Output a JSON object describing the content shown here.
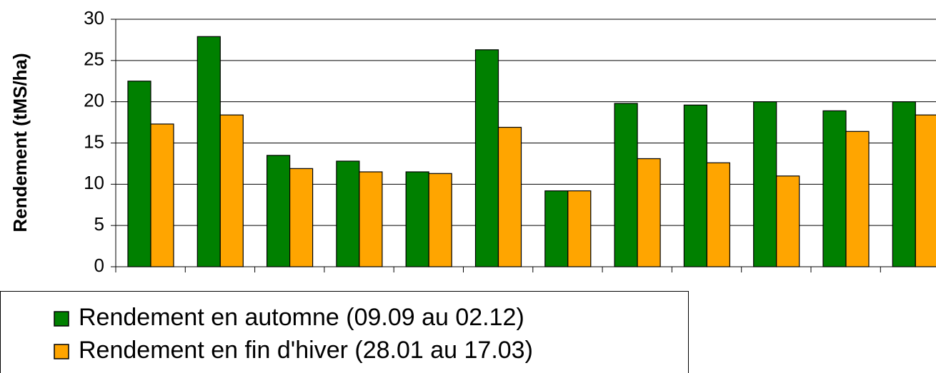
{
  "chart_data": {
    "type": "bar",
    "y_label": "Rendement (tMS/ha)",
    "categories": [
      null,
      null,
      null,
      null,
      null,
      null,
      null,
      null,
      null,
      null,
      null,
      null
    ],
    "series": [
      {
        "name": "Rendement en automne (09.09 au 02.12)",
        "color": "#008000",
        "values": [
          22.5,
          27.9,
          13.5,
          12.8,
          11.5,
          26.3,
          9.2,
          19.8,
          19.6,
          20.0,
          18.9,
          20.0
        ]
      },
      {
        "name": "Rendement en fin d'hiver (28.01 au 17.03)",
        "color": "#ffa500",
        "values": [
          17.3,
          18.4,
          11.9,
          11.5,
          11.3,
          16.9,
          9.2,
          13.1,
          12.6,
          11.0,
          16.4,
          18.4
        ]
      }
    ],
    "ylim": [
      0,
      30
    ],
    "yticks": [
      0,
      5,
      10,
      15,
      20,
      25,
      30
    ],
    "grid": true
  }
}
